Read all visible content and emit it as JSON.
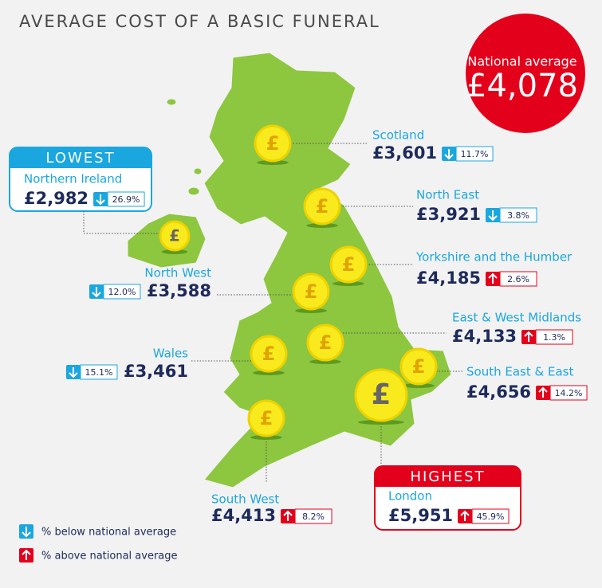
{
  "title": "AVERAGE COST OF A BASIC FUNERAL",
  "national": {
    "label": "National average",
    "value": "£4,078"
  },
  "coin_symbol": "£",
  "regions": [
    {
      "name": "Scotland",
      "cost": "£3,601",
      "change": "11.7%",
      "arrow": "down"
    },
    {
      "name": "North East",
      "cost": "£3,921",
      "change": "3.8%",
      "arrow": "down"
    },
    {
      "name": "Yorkshire and the Humber",
      "cost": "£4,185",
      "change": "2.6%",
      "arrow": "up"
    },
    {
      "name": "North West",
      "cost": "£3,588",
      "change": "12.0%",
      "arrow": "down"
    },
    {
      "name": "East & West Midlands",
      "cost": "£4,133",
      "change": "1.3%",
      "arrow": "up"
    },
    {
      "name": "Wales",
      "cost": "£3,461",
      "change": "15.1%",
      "arrow": "down"
    },
    {
      "name": "South East & East",
      "cost": "£4,656",
      "change": "14.2%",
      "arrow": "up"
    },
    {
      "name": "South West",
      "cost": "£4,413",
      "change": "8.2%",
      "arrow": "up"
    },
    {
      "name": "London",
      "cost": "£5,951",
      "change": "45.9%",
      "arrow": "up",
      "badge": "HIGHEST"
    },
    {
      "name": "Northern Ireland",
      "cost": "£2,982",
      "change": "26.9%",
      "arrow": "down",
      "badge": "LOWEST"
    }
  ],
  "legend": [
    {
      "arrow": "down",
      "text": "% below national average"
    },
    {
      "arrow": "up",
      "text": "% above national average"
    }
  ]
}
